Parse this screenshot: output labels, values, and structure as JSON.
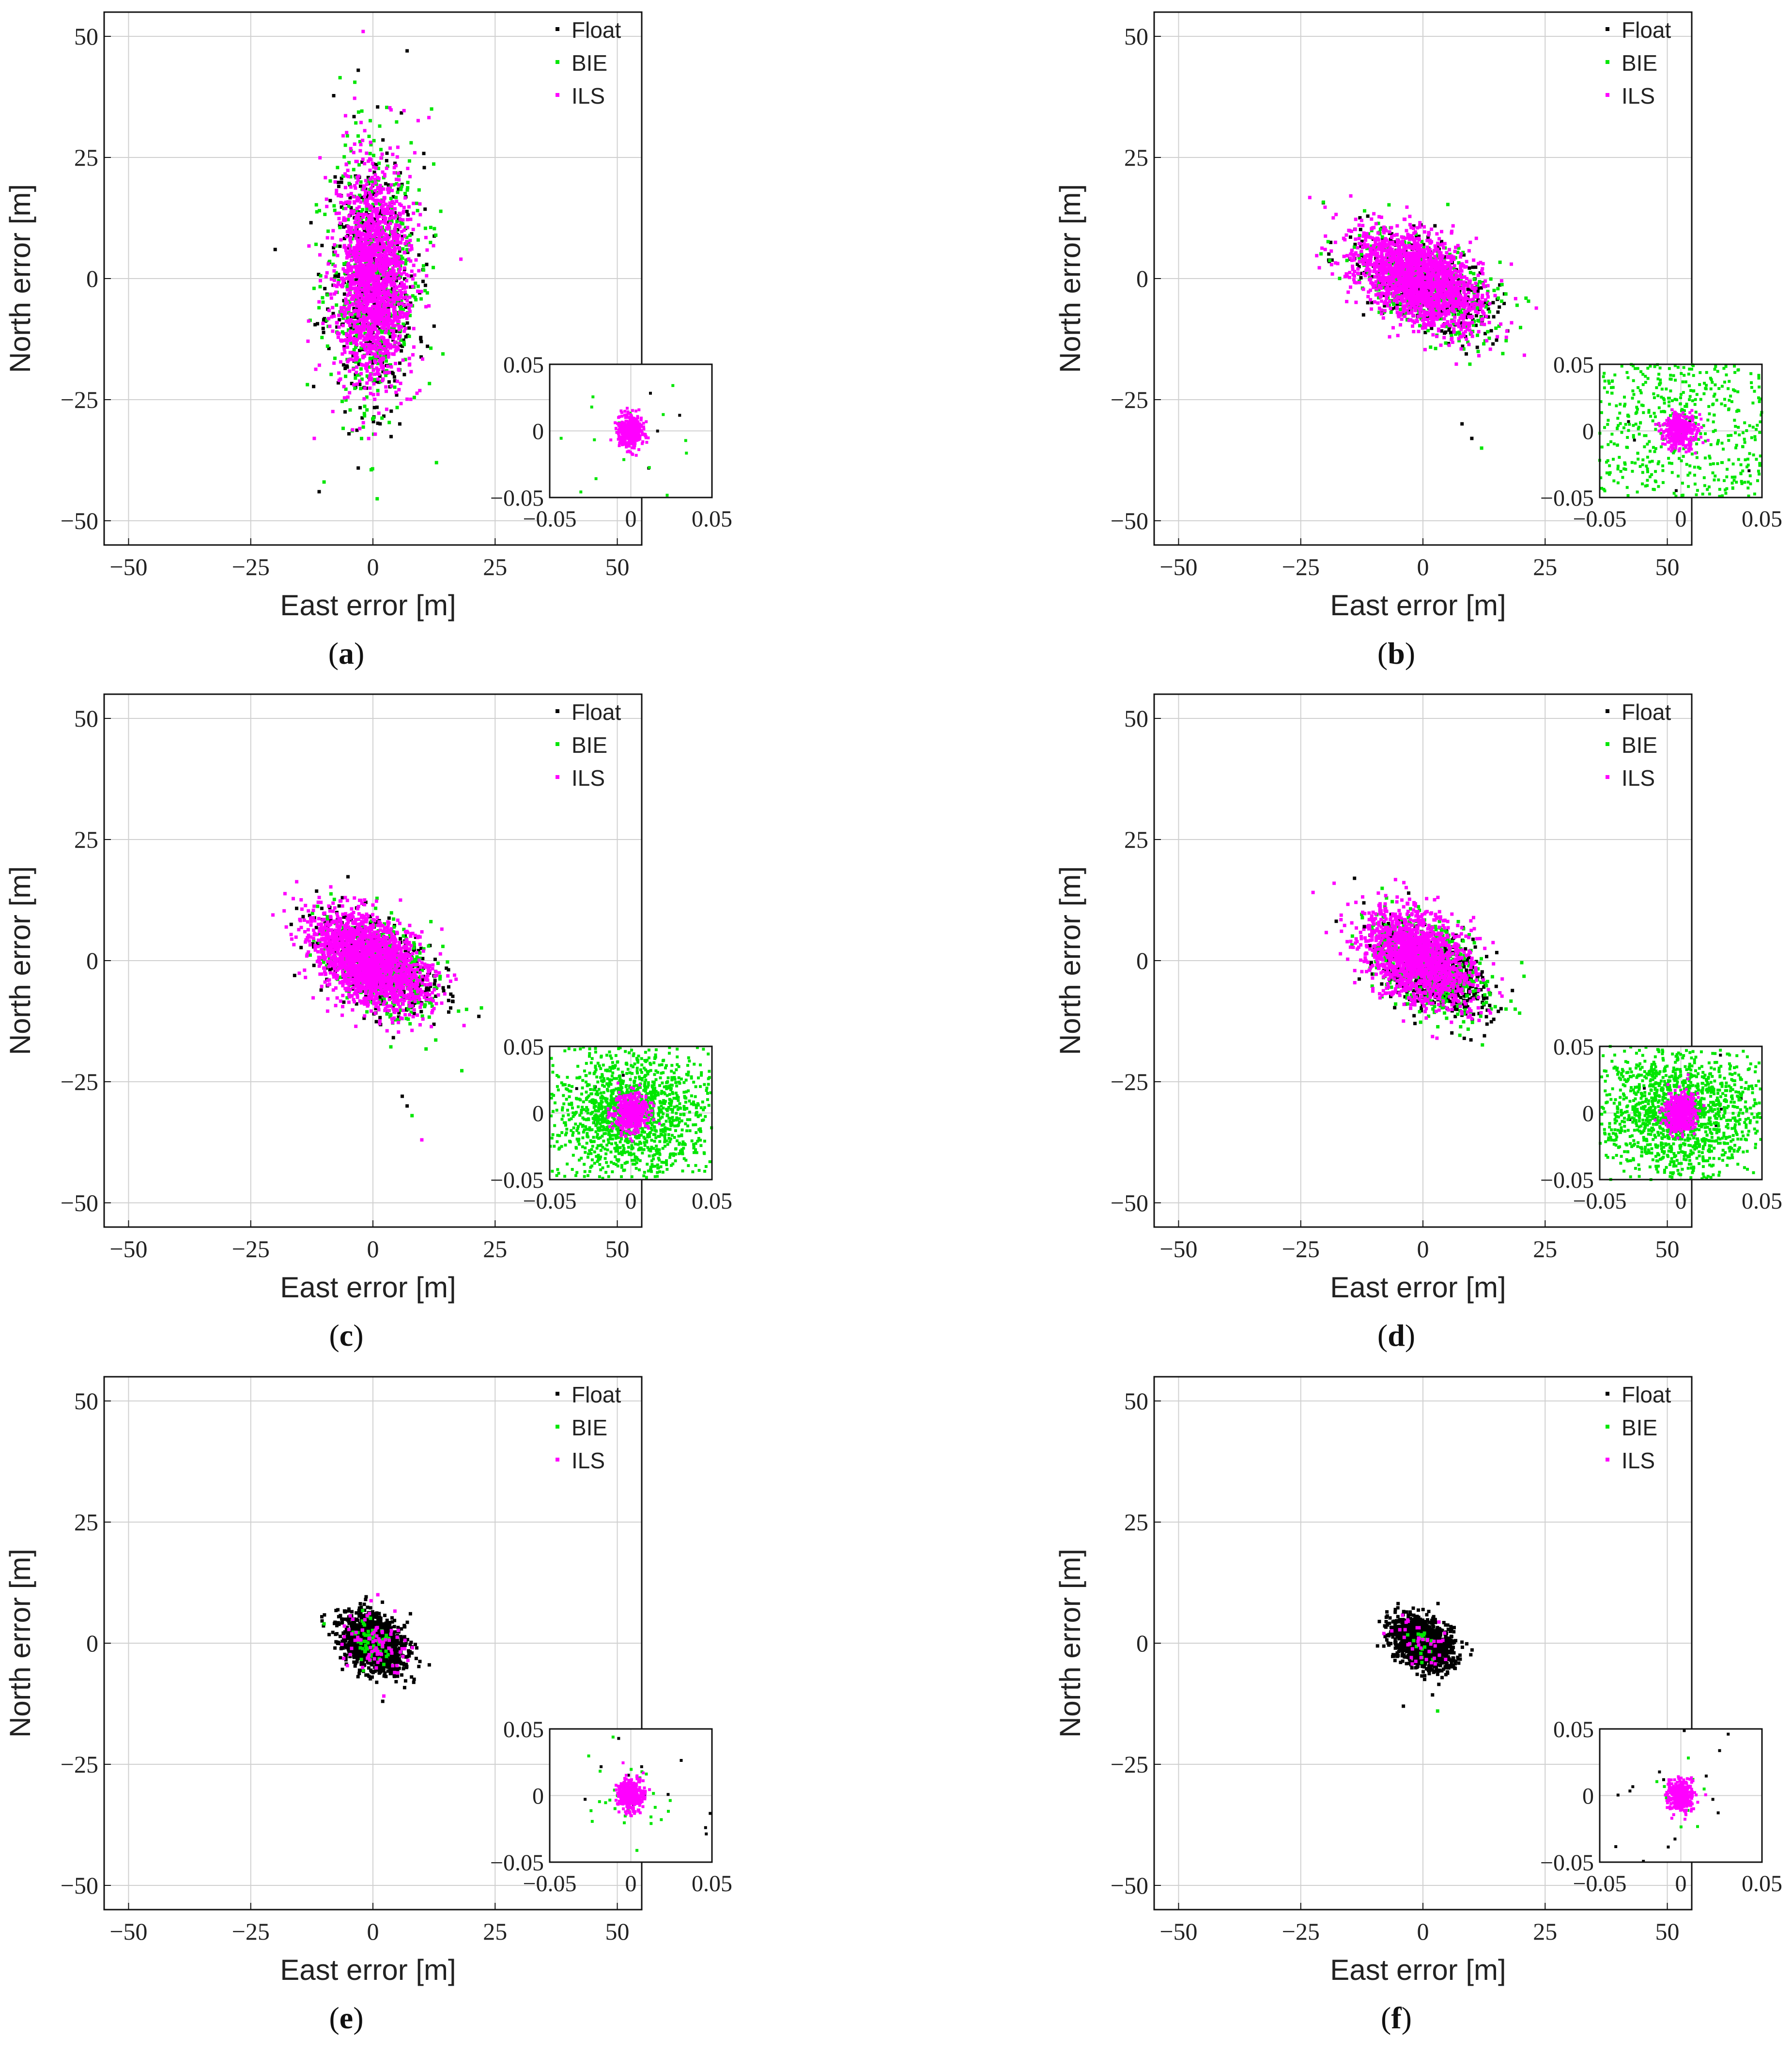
{
  "figure": {
    "panel_ids": [
      "a",
      "b",
      "c",
      "d",
      "e",
      "f"
    ]
  },
  "chart_data": [
    {
      "type": "scatter",
      "panel": "(a)",
      "panel_letter": "a",
      "xlabel": "East error [m]",
      "ylabel": "North error [m]",
      "xlim": [
        -55,
        55
      ],
      "ylim": [
        -55,
        55
      ],
      "xticks": [
        -50,
        -25,
        0,
        25,
        50
      ],
      "yticks": [
        -50,
        -25,
        0,
        25,
        50
      ],
      "xtick_labels": [
        "−50",
        "−25",
        "0",
        "25",
        "50"
      ],
      "ytick_labels": [
        "−50",
        "−25",
        "0",
        "25",
        "50"
      ],
      "grid": true,
      "legend": "top-right",
      "series": [
        {
          "name": "Float",
          "color": "#000000",
          "center": [
            0,
            0
          ],
          "spread": [
            4.5,
            13
          ],
          "rotation_deg": 0,
          "count": 500
        },
        {
          "name": "BIE",
          "color": "#00e600",
          "center": [
            0,
            0
          ],
          "spread": [
            4.5,
            13
          ],
          "rotation_deg": 0,
          "count": 600
        },
        {
          "name": "ILS",
          "color": "#ff00ff",
          "center": [
            0,
            0
          ],
          "spread": [
            3.8,
            11
          ],
          "rotation_deg": 0,
          "count": 1800
        }
      ],
      "outliers": [
        [
          -11,
          -44
        ],
        [
          -10,
          -42
        ],
        [
          -2,
          51
        ],
        [
          7,
          47
        ],
        [
          12,
          35
        ],
        [
          18,
          4
        ],
        [
          -20,
          6
        ],
        [
          13,
          -38
        ],
        [
          -12,
          -33
        ],
        [
          -3,
          43
        ]
      ],
      "inset": {
        "xlim": [
          -0.05,
          0.05
        ],
        "ylim": [
          -0.05,
          0.05
        ],
        "xticks": [
          -0.05,
          0,
          0.05
        ],
        "yticks": [
          -0.05,
          0,
          0.05
        ],
        "xtick_labels": [
          "−0.05",
          "0",
          "0.05"
        ],
        "ytick_labels": [
          "0.05",
          "0",
          "−0.05"
        ],
        "series": [
          {
            "name": "Float",
            "color": "#000000",
            "center": [
              0,
              0
            ],
            "spread": [
              0.03,
              0.03
            ],
            "count": 4
          },
          {
            "name": "BIE",
            "color": "#00e600",
            "center": [
              0,
              0
            ],
            "spread": [
              0.03,
              0.025
            ],
            "count": 20
          },
          {
            "name": "ILS",
            "color": "#ff00ff",
            "center": [
              0,
              0
            ],
            "spread": [
              0.004,
              0.006
            ],
            "count": 400
          }
        ]
      }
    },
    {
      "type": "scatter",
      "panel": "(b)",
      "panel_letter": "b",
      "xlabel": "East error [m]",
      "ylabel": "North error [m]",
      "xlim": [
        -55,
        55
      ],
      "ylim": [
        -55,
        55
      ],
      "xticks": [
        -50,
        -25,
        0,
        25,
        50
      ],
      "yticks": [
        -50,
        -25,
        0,
        25,
        50
      ],
      "xtick_labels": [
        "−50",
        "−25",
        "0",
        "25",
        "50"
      ],
      "ytick_labels": [
        "−50",
        "−25",
        "0",
        "25",
        "50"
      ],
      "grid": true,
      "legend": "top-right",
      "series": [
        {
          "name": "Float",
          "color": "#000000",
          "center": [
            0,
            -1
          ],
          "spread": [
            7.5,
            4
          ],
          "rotation_deg": -30,
          "count": 500
        },
        {
          "name": "BIE",
          "color": "#00e600",
          "center": [
            0,
            -1
          ],
          "spread": [
            7.5,
            4
          ],
          "rotation_deg": -30,
          "count": 500
        },
        {
          "name": "ILS",
          "color": "#ff00ff",
          "center": [
            -1,
            0
          ],
          "spread": [
            7,
            4
          ],
          "rotation_deg": -30,
          "count": 1800
        }
      ],
      "outliers": [
        [
          8,
          -30
        ],
        [
          12,
          -35
        ],
        [
          -20,
          6
        ],
        [
          10,
          -33
        ]
      ],
      "inset": {
        "xlim": [
          -0.05,
          0.05
        ],
        "ylim": [
          -0.05,
          0.05
        ],
        "xticks": [
          -0.05,
          0,
          0.05
        ],
        "yticks": [
          -0.05,
          0,
          0.05
        ],
        "xtick_labels": [
          "−0.05",
          "0",
          "0.05"
        ],
        "ytick_labels": [
          "0.05",
          "0",
          "−0.05"
        ],
        "series": [
          {
            "name": "Float",
            "color": "#000000",
            "center": [
              0,
              0
            ],
            "spread": [
              0.03,
              0.03
            ],
            "count": 6
          },
          {
            "name": "BIE",
            "color": "#00e600",
            "center": [
              0,
              0
            ],
            "spread": [
              0.06,
              0.06
            ],
            "count": 1400
          },
          {
            "name": "ILS",
            "color": "#ff00ff",
            "center": [
              0,
              0
            ],
            "spread": [
              0.005,
              0.006
            ],
            "count": 400
          }
        ]
      }
    },
    {
      "type": "scatter",
      "panel": "(c)",
      "panel_letter": "c",
      "xlabel": "East error [m]",
      "ylabel": "North error [m]",
      "xlim": [
        -55,
        55
      ],
      "ylim": [
        -55,
        55
      ],
      "xticks": [
        -50,
        -25,
        0,
        25,
        50
      ],
      "yticks": [
        -50,
        -25,
        0,
        25,
        50
      ],
      "xtick_labels": [
        "−50",
        "−25",
        "0",
        "25",
        "50"
      ],
      "ytick_labels": [
        "−50",
        "−25",
        "0",
        "25",
        "50"
      ],
      "grid": true,
      "legend": "top-right",
      "series": [
        {
          "name": "Float",
          "color": "#000000",
          "center": [
            1,
            -1
          ],
          "spread": [
            7,
            4
          ],
          "rotation_deg": -35,
          "count": 500
        },
        {
          "name": "BIE",
          "color": "#00e600",
          "center": [
            1,
            -1
          ],
          "spread": [
            7,
            4
          ],
          "rotation_deg": -35,
          "count": 500
        },
        {
          "name": "ILS",
          "color": "#ff00ff",
          "center": [
            -1,
            0
          ],
          "spread": [
            6.5,
            4
          ],
          "rotation_deg": -35,
          "count": 1800
        }
      ],
      "outliers": [
        [
          6,
          -28
        ],
        [
          8,
          -32
        ],
        [
          10,
          -37
        ],
        [
          7,
          -30
        ]
      ],
      "inset": {
        "xlim": [
          -0.05,
          0.05
        ],
        "ylim": [
          -0.05,
          0.05
        ],
        "xticks": [
          -0.05,
          0,
          0.05
        ],
        "yticks": [
          -0.05,
          0,
          0.05
        ],
        "xtick_labels": [
          "−0.05",
          "0",
          "0.05"
        ],
        "ytick_labels": [
          "0.05",
          "0",
          "−0.05"
        ],
        "series": [
          {
            "name": "Float",
            "color": "#000000",
            "center": [
              0,
              0
            ],
            "spread": [
              0.03,
              0.03
            ],
            "count": 6
          },
          {
            "name": "BIE",
            "color": "#00e600",
            "center": [
              0,
              0
            ],
            "spread": [
              0.025,
              0.025
            ],
            "count": 1500
          },
          {
            "name": "ILS",
            "color": "#ff00ff",
            "center": [
              0,
              0
            ],
            "spread": [
              0.005,
              0.007
            ],
            "count": 450
          }
        ]
      }
    },
    {
      "type": "scatter",
      "panel": "(d)",
      "panel_letter": "d",
      "xlabel": "East error [m]",
      "ylabel": "North error [m]",
      "xlim": [
        -55,
        55
      ],
      "ylim": [
        -55,
        55
      ],
      "xticks": [
        -50,
        -25,
        0,
        25,
        50
      ],
      "yticks": [
        -50,
        -25,
        0,
        25,
        50
      ],
      "xtick_labels": [
        "−50",
        "−25",
        "0",
        "25",
        "50"
      ],
      "ytick_labels": [
        "−50",
        "−25",
        "0",
        "25",
        "50"
      ],
      "grid": true,
      "legend": "top-right",
      "series": [
        {
          "name": "Float",
          "color": "#000000",
          "center": [
            2,
            -2
          ],
          "spread": [
            6,
            3.5
          ],
          "rotation_deg": -35,
          "count": 700
        },
        {
          "name": "BIE",
          "color": "#00e600",
          "center": [
            1,
            -1
          ],
          "spread": [
            6.5,
            4
          ],
          "rotation_deg": -35,
          "count": 600
        },
        {
          "name": "ILS",
          "color": "#ff00ff",
          "center": [
            -1,
            1
          ],
          "spread": [
            6,
            4
          ],
          "rotation_deg": -35,
          "count": 1500
        }
      ],
      "outliers": [
        [
          -14,
          17
        ],
        [
          17,
          -10
        ],
        [
          10,
          -12
        ],
        [
          -12,
          7
        ]
      ],
      "inset": {
        "xlim": [
          -0.05,
          0.05
        ],
        "ylim": [
          -0.05,
          0.05
        ],
        "xticks": [
          -0.05,
          0,
          0.05
        ],
        "yticks": [
          -0.05,
          0,
          0.05
        ],
        "xtick_labels": [
          "−0.05",
          "0",
          "0.05"
        ],
        "ytick_labels": [
          "0.05",
          "0",
          "−0.05"
        ],
        "series": [
          {
            "name": "Float",
            "color": "#000000",
            "center": [
              0,
              0
            ],
            "spread": [
              0.03,
              0.03
            ],
            "count": 10
          },
          {
            "name": "BIE",
            "color": "#00e600",
            "center": [
              0,
              0
            ],
            "spread": [
              0.025,
              0.025
            ],
            "count": 1500
          },
          {
            "name": "ILS",
            "color": "#ff00ff",
            "center": [
              0,
              0
            ],
            "spread": [
              0.005,
              0.007
            ],
            "count": 450
          }
        ]
      }
    },
    {
      "type": "scatter",
      "panel": "(e)",
      "panel_letter": "e",
      "xlabel": "East error [m]",
      "ylabel": "North error [m]",
      "xlim": [
        -55,
        55
      ],
      "ylim": [
        -55,
        55
      ],
      "xticks": [
        -50,
        -25,
        0,
        25,
        50
      ],
      "yticks": [
        -50,
        -25,
        0,
        25,
        50
      ],
      "xtick_labels": [
        "−50",
        "−25",
        "0",
        "25",
        "50"
      ],
      "ytick_labels": [
        "−50",
        "−25",
        "0",
        "25",
        "50"
      ],
      "grid": true,
      "legend": "top-right",
      "series": [
        {
          "name": "Float",
          "color": "#000000",
          "center": [
            0,
            0
          ],
          "spread": [
            3.5,
            2.5
          ],
          "rotation_deg": -35,
          "count": 1500
        },
        {
          "name": "BIE",
          "color": "#00e600",
          "center": [
            0,
            0
          ],
          "spread": [
            2.5,
            2
          ],
          "rotation_deg": -35,
          "count": 60
        },
        {
          "name": "ILS",
          "color": "#ff00ff",
          "center": [
            0,
            0
          ],
          "spread": [
            3.5,
            3
          ],
          "rotation_deg": -35,
          "count": 80
        }
      ],
      "outliers": [
        [
          2,
          -12
        ],
        [
          -10,
          4
        ],
        [
          1,
          10
        ]
      ],
      "inset": {
        "xlim": [
          -0.05,
          0.05
        ],
        "ylim": [
          -0.05,
          0.05
        ],
        "xticks": [
          -0.05,
          0,
          0.05
        ],
        "yticks": [
          -0.05,
          0,
          0.05
        ],
        "xtick_labels": [
          "−0.05",
          "0",
          "0.05"
        ],
        "ytick_labels": [
          "0.05",
          "0",
          "−0.05"
        ],
        "series": [
          {
            "name": "Float",
            "color": "#000000",
            "center": [
              0,
              0
            ],
            "spread": [
              0.03,
              0.03
            ],
            "count": 14
          },
          {
            "name": "BIE",
            "color": "#00e600",
            "center": [
              0,
              0
            ],
            "spread": [
              0.015,
              0.02
            ],
            "count": 30
          },
          {
            "name": "ILS",
            "color": "#ff00ff",
            "center": [
              0,
              0
            ],
            "spread": [
              0.004,
              0.006
            ],
            "count": 400
          }
        ]
      }
    },
    {
      "type": "scatter",
      "panel": "(f)",
      "panel_letter": "f",
      "xlabel": "East error [m]",
      "ylabel": "North error [m]",
      "xlim": [
        -55,
        55
      ],
      "ylim": [
        -55,
        55
      ],
      "xticks": [
        -50,
        -25,
        0,
        25,
        50
      ],
      "yticks": [
        -50,
        -25,
        0,
        25,
        50
      ],
      "xtick_labels": [
        "−50",
        "−25",
        "0",
        "25",
        "50"
      ],
      "ytick_labels": [
        "−50",
        "−25",
        "0",
        "25",
        "50"
      ],
      "grid": true,
      "legend": "top-right",
      "series": [
        {
          "name": "Float",
          "color": "#000000",
          "center": [
            0,
            0
          ],
          "spread": [
            3.2,
            2.3
          ],
          "rotation_deg": -35,
          "count": 1400
        },
        {
          "name": "BIE",
          "color": "#00e600",
          "center": [
            0,
            0
          ],
          "spread": [
            2,
            2
          ],
          "rotation_deg": -35,
          "count": 20
        },
        {
          "name": "ILS",
          "color": "#ff00ff",
          "center": [
            0,
            0
          ],
          "spread": [
            3,
            2.5
          ],
          "rotation_deg": -35,
          "count": 40
        }
      ],
      "outliers": [
        [
          -4,
          -13
        ],
        [
          3,
          -14
        ],
        [
          -8,
          2
        ]
      ],
      "inset": {
        "xlim": [
          -0.05,
          0.05
        ],
        "ylim": [
          -0.05,
          0.05
        ],
        "xticks": [
          -0.05,
          0,
          0.05
        ],
        "yticks": [
          -0.05,
          0,
          0.05
        ],
        "xtick_labels": [
          "−0.05",
          "0",
          "0.05"
        ],
        "ytick_labels": [
          "0.05",
          "0",
          "−0.05"
        ],
        "series": [
          {
            "name": "Float",
            "color": "#000000",
            "center": [
              0,
              0
            ],
            "spread": [
              0.035,
              0.03
            ],
            "count": 20
          },
          {
            "name": "BIE",
            "color": "#00e600",
            "center": [
              0,
              0
            ],
            "spread": [
              0.01,
              0.01
            ],
            "count": 10
          },
          {
            "name": "ILS",
            "color": "#ff00ff",
            "center": [
              0,
              0
            ],
            "spread": [
              0.004,
              0.006
            ],
            "count": 350
          }
        ]
      }
    }
  ]
}
